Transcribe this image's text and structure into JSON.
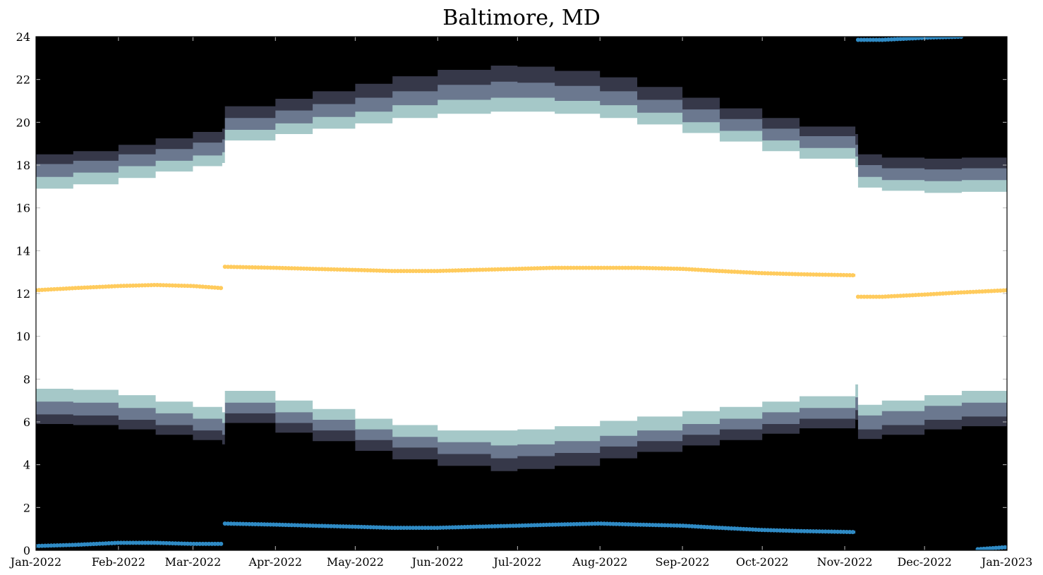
{
  "chart_data": {
    "type": "area",
    "title": "Baltimore, MD",
    "xlabel": "",
    "ylabel": "",
    "x_ticks": [
      "Jan-2022",
      "Feb-2022",
      "Mar-2022",
      "Apr-2022",
      "May-2022",
      "Jun-2022",
      "Jul-2022",
      "Aug-2022",
      "Sep-2022",
      "Oct-2022",
      "Nov-2022",
      "Dec-2022",
      "Jan-2023"
    ],
    "x_tick_dates": [
      "2022-01-01",
      "2022-02-01",
      "2022-03-01",
      "2022-04-01",
      "2022-05-01",
      "2022-06-01",
      "2022-07-01",
      "2022-08-01",
      "2022-09-01",
      "2022-10-01",
      "2022-11-01",
      "2022-12-01",
      "2023-01-01"
    ],
    "xlim": [
      "2022-01-01",
      "2023-01-01"
    ],
    "y_ticks": [
      "0",
      "2",
      "4",
      "6",
      "8",
      "10",
      "12",
      "14",
      "16",
      "18",
      "20",
      "22",
      "24"
    ],
    "ylim": [
      0,
      24
    ],
    "grid": false,
    "colors": {
      "night": "#000000",
      "astronomical_twilight": "#363849",
      "nautical_twilight": "#6b788f",
      "civil_twilight": "#a5c8c8",
      "daylight": "#ffffff",
      "solar_noon": "#ffcb5d",
      "solar_midnight": "#2f8ac4"
    },
    "bands": {
      "dates": [
        "2022-01-01",
        "2022-01-15",
        "2022-02-01",
        "2022-02-15",
        "2022-03-01",
        "2022-03-12",
        "2022-03-13",
        "2022-04-01",
        "2022-04-15",
        "2022-05-01",
        "2022-05-15",
        "2022-06-01",
        "2022-06-21",
        "2022-07-01",
        "2022-07-15",
        "2022-08-01",
        "2022-08-15",
        "2022-09-01",
        "2022-09-15",
        "2022-10-01",
        "2022-10-15",
        "2022-11-05",
        "2022-11-06",
        "2022-11-15",
        "2022-12-01",
        "2022-12-15",
        "2023-01-01"
      ],
      "astronomical_dawn": [
        5.9,
        5.85,
        5.65,
        5.4,
        5.15,
        4.95,
        5.95,
        5.5,
        5.1,
        4.65,
        4.25,
        3.95,
        3.7,
        3.8,
        3.95,
        4.3,
        4.6,
        4.9,
        5.15,
        5.45,
        5.7,
        6.1,
        5.2,
        5.4,
        5.65,
        5.8,
        5.9
      ],
      "nautical_dawn": [
        6.35,
        6.3,
        6.1,
        5.85,
        5.6,
        5.4,
        6.4,
        5.95,
        5.6,
        5.15,
        4.8,
        4.5,
        4.3,
        4.4,
        4.55,
        4.85,
        5.1,
        5.4,
        5.65,
        5.9,
        6.15,
        6.55,
        5.65,
        5.85,
        6.1,
        6.25,
        6.35
      ],
      "civil_dawn": [
        6.95,
        6.9,
        6.65,
        6.4,
        6.15,
        5.95,
        6.9,
        6.45,
        6.1,
        5.65,
        5.3,
        5.05,
        4.9,
        4.95,
        5.1,
        5.35,
        5.6,
        5.9,
        6.15,
        6.45,
        6.65,
        7.15,
        6.3,
        6.5,
        6.75,
        6.9,
        6.95
      ],
      "sunrise": [
        7.55,
        7.5,
        7.25,
        6.95,
        6.7,
        6.45,
        7.45,
        7.0,
        6.6,
        6.15,
        5.85,
        5.6,
        5.6,
        5.65,
        5.8,
        6.05,
        6.25,
        6.5,
        6.7,
        6.95,
        7.2,
        7.75,
        6.8,
        7.0,
        7.25,
        7.45,
        7.55
      ],
      "sunset": [
        16.9,
        17.1,
        17.4,
        17.7,
        17.95,
        18.1,
        19.15,
        19.45,
        19.7,
        19.95,
        20.2,
        20.4,
        20.5,
        20.5,
        20.4,
        20.2,
        19.9,
        19.5,
        19.1,
        18.65,
        18.3,
        17.9,
        16.95,
        16.8,
        16.7,
        16.75,
        16.9
      ],
      "civil_dusk": [
        17.45,
        17.65,
        17.95,
        18.2,
        18.45,
        18.6,
        19.65,
        19.95,
        20.25,
        20.5,
        20.8,
        21.05,
        21.15,
        21.15,
        21.0,
        20.8,
        20.45,
        20.0,
        19.6,
        19.15,
        18.8,
        18.4,
        17.45,
        17.3,
        17.25,
        17.3,
        17.45
      ],
      "nautical_dusk": [
        18.05,
        18.2,
        18.5,
        18.75,
        19.05,
        19.2,
        20.2,
        20.55,
        20.85,
        21.15,
        21.45,
        21.75,
        21.9,
        21.85,
        21.7,
        21.45,
        21.05,
        20.6,
        20.15,
        19.7,
        19.35,
        18.95,
        18.0,
        17.85,
        17.8,
        17.85,
        18.05
      ],
      "astronomical_dusk": [
        18.5,
        18.65,
        18.95,
        19.25,
        19.55,
        19.7,
        20.75,
        21.1,
        21.45,
        21.8,
        22.15,
        22.45,
        22.65,
        22.6,
        22.4,
        22.1,
        21.65,
        21.15,
        20.65,
        20.2,
        19.8,
        19.45,
        18.5,
        18.35,
        18.3,
        18.35,
        18.5
      ]
    },
    "series": [
      {
        "key": "solar_noon",
        "color": "#ffcb5d",
        "segments": [
          {
            "dates": [
              "2022-01-01",
              "2022-01-15",
              "2022-02-01",
              "2022-02-15",
              "2022-03-01",
              "2022-03-12"
            ],
            "values": [
              12.15,
              12.25,
              12.35,
              12.4,
              12.35,
              12.25
            ]
          },
          {
            "dates": [
              "2022-03-13",
              "2022-04-01",
              "2022-04-15",
              "2022-05-01",
              "2022-05-15",
              "2022-06-01",
              "2022-06-15",
              "2022-07-01",
              "2022-07-15",
              "2022-08-01",
              "2022-08-15",
              "2022-09-01",
              "2022-09-15",
              "2022-10-01",
              "2022-10-15",
              "2022-11-05"
            ],
            "values": [
              13.25,
              13.2,
              13.15,
              13.1,
              13.05,
              13.05,
              13.1,
              13.15,
              13.2,
              13.2,
              13.2,
              13.15,
              13.05,
              12.95,
              12.9,
              12.85
            ]
          },
          {
            "dates": [
              "2022-11-06",
              "2022-11-15",
              "2022-12-01",
              "2022-12-15",
              "2023-01-01"
            ],
            "values": [
              11.85,
              11.85,
              11.95,
              12.05,
              12.15
            ]
          }
        ]
      },
      {
        "key": "solar_midnight",
        "color": "#2f8ac4",
        "segments": [
          {
            "dates": [
              "2022-01-01",
              "2022-01-15",
              "2022-02-01",
              "2022-02-15",
              "2022-03-01",
              "2022-03-12"
            ],
            "values": [
              0.2,
              0.25,
              0.35,
              0.35,
              0.3,
              0.3
            ]
          },
          {
            "dates": [
              "2022-03-13",
              "2022-04-01",
              "2022-04-15",
              "2022-05-01",
              "2022-05-15",
              "2022-06-01",
              "2022-06-15",
              "2022-07-01",
              "2022-07-15",
              "2022-08-01",
              "2022-08-15",
              "2022-09-01",
              "2022-09-15",
              "2022-10-01",
              "2022-10-15",
              "2022-11-05"
            ],
            "values": [
              1.25,
              1.2,
              1.15,
              1.1,
              1.05,
              1.05,
              1.1,
              1.15,
              1.2,
              1.25,
              1.2,
              1.15,
              1.05,
              0.95,
              0.9,
              0.85
            ]
          },
          {
            "dates": [
              "2022-11-06",
              "2022-11-15",
              "2022-12-01",
              "2022-12-15"
            ],
            "values": [
              23.85,
              23.85,
              23.95,
              24.0
            ]
          },
          {
            "dates": [
              "2022-12-21",
              "2023-01-01"
            ],
            "values": [
              0.05,
              0.15
            ]
          }
        ]
      }
    ]
  }
}
